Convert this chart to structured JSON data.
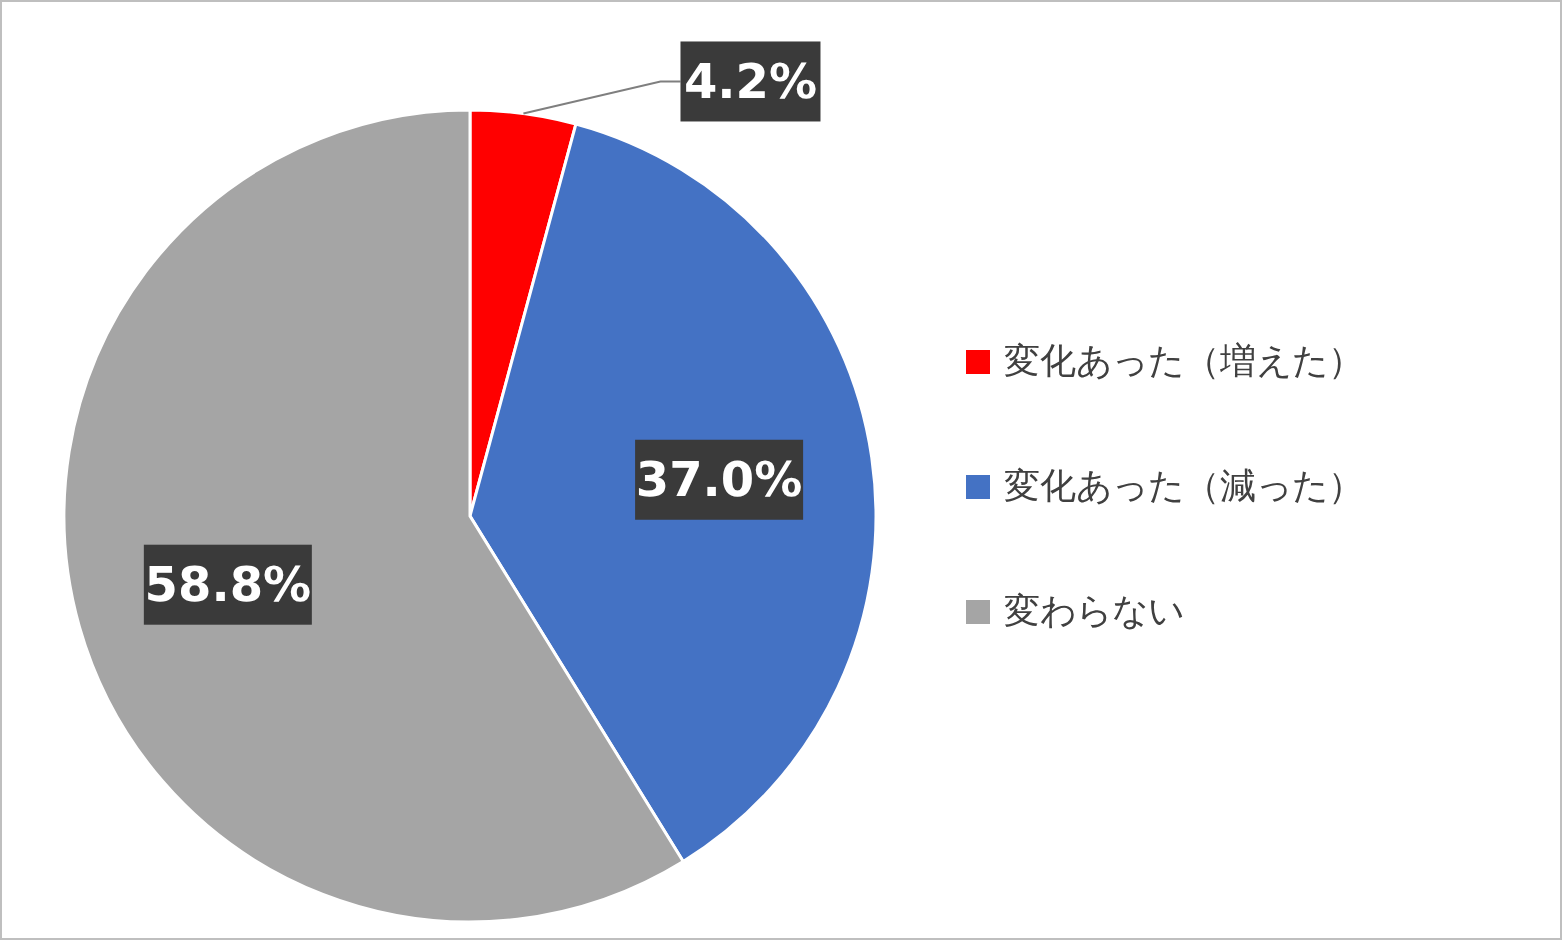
{
  "chart_data": {
    "type": "pie",
    "categories": [
      "変化あった（増えた）",
      "変化あった（減った）",
      "変わらない"
    ],
    "values": [
      4.2,
      37.0,
      58.8
    ],
    "colors": [
      "#ff0000",
      "#4472c4",
      "#a5a5a5"
    ],
    "value_labels": [
      "4.2%",
      "37.0%",
      "58.8%"
    ],
    "legend": "right"
  }
}
